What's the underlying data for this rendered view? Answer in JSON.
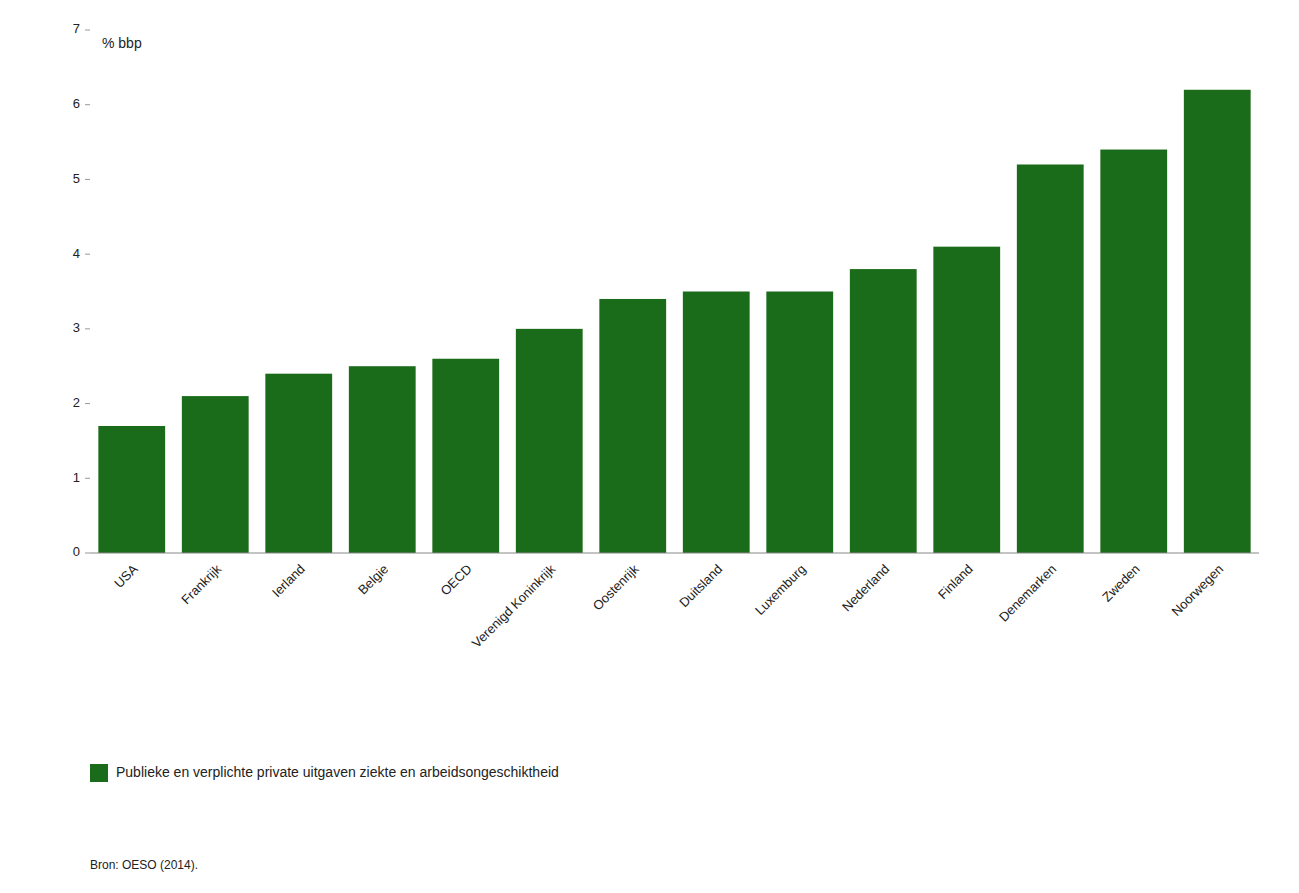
{
  "chart_data": {
    "type": "bar",
    "y_label": "% bbp",
    "categories": [
      "USA",
      "Frankrijk",
      "Ierland",
      "Belgie",
      "OECD",
      "Verenigd Koninkrijk",
      "Oostenrijk",
      "Duitsland",
      "Luxemburg",
      "Nederland",
      "Finland",
      "Denemarken",
      "Zweden",
      "Noorwegen"
    ],
    "series": [
      {
        "name": "Publieke en verplichte private uitgaven ziekte en arbeidsongeschiktheid",
        "color": "#1a6b1a",
        "values": [
          1.7,
          2.1,
          2.4,
          2.5,
          2.6,
          3.0,
          3.4,
          3.5,
          3.5,
          3.8,
          4.1,
          5.2,
          5.4,
          6.2
        ]
      }
    ],
    "ylim": [
      0,
      7
    ],
    "yticks": [
      0,
      1,
      2,
      3,
      4,
      5,
      6,
      7
    ],
    "grid": false,
    "legend": "lower left",
    "annotations": [
      "Bron: OESO (2014)."
    ]
  }
}
